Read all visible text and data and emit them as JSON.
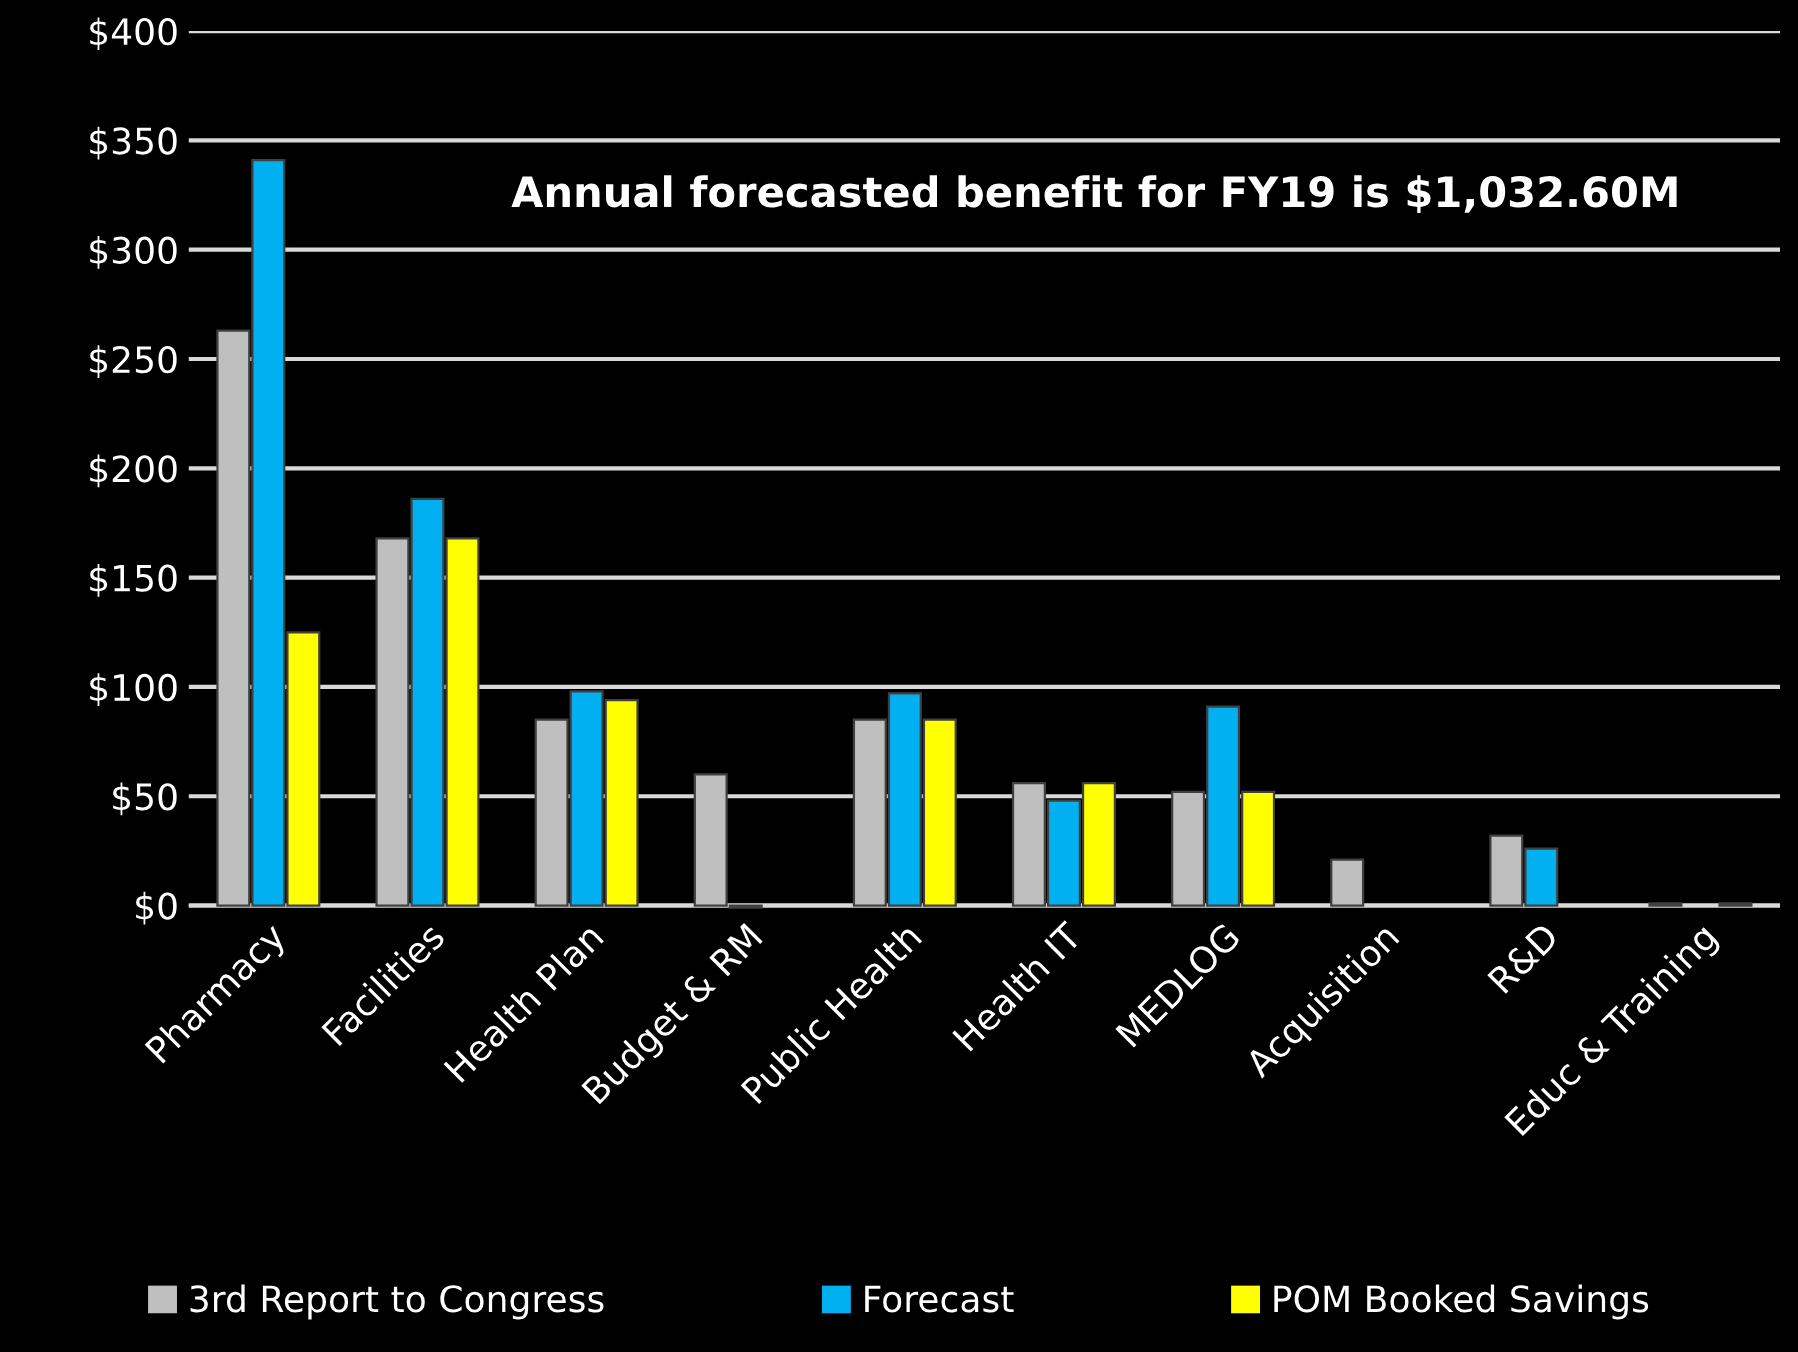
{
  "chart_data": {
    "type": "bar",
    "categories": [
      "Pharmacy",
      "Facilities",
      "Health Plan",
      "Budget & RM",
      "Public Health",
      "Health IT",
      "MEDLOG",
      "Acquisition",
      "R&D",
      "Educ & Training"
    ],
    "series": [
      {
        "name": "3rd Report to Congress",
        "color": "#bfbfbf",
        "values": [
          263,
          168,
          85,
          60,
          85,
          56,
          52,
          21,
          32,
          1
        ]
      },
      {
        "name": "Forecast",
        "color": "#00b0f0",
        "values": [
          341,
          186,
          98,
          -1,
          97,
          48,
          91,
          null,
          26,
          null
        ]
      },
      {
        "name": "POM Booked Savings",
        "color": "#ffff00",
        "values": [
          125,
          168,
          94,
          null,
          85,
          56,
          52,
          null,
          null,
          1
        ]
      }
    ],
    "ylim": [
      -2,
      400
    ],
    "yticks": [
      {
        "value": 0,
        "label": "$0"
      },
      {
        "value": 50,
        "label": "$50"
      },
      {
        "value": 100,
        "label": "$100"
      },
      {
        "value": 150,
        "label": "$150"
      },
      {
        "value": 200,
        "label": "$200"
      },
      {
        "value": 250,
        "label": "$250"
      },
      {
        "value": 300,
        "label": "$300"
      },
      {
        "value": 350,
        "label": "$350"
      },
      {
        "value": 400,
        "label": "$400"
      }
    ],
    "grid": "y",
    "legend": "bottom",
    "annotations": [
      "Annual forecasted benefit for FY19 is $1,032.60M"
    ]
  }
}
